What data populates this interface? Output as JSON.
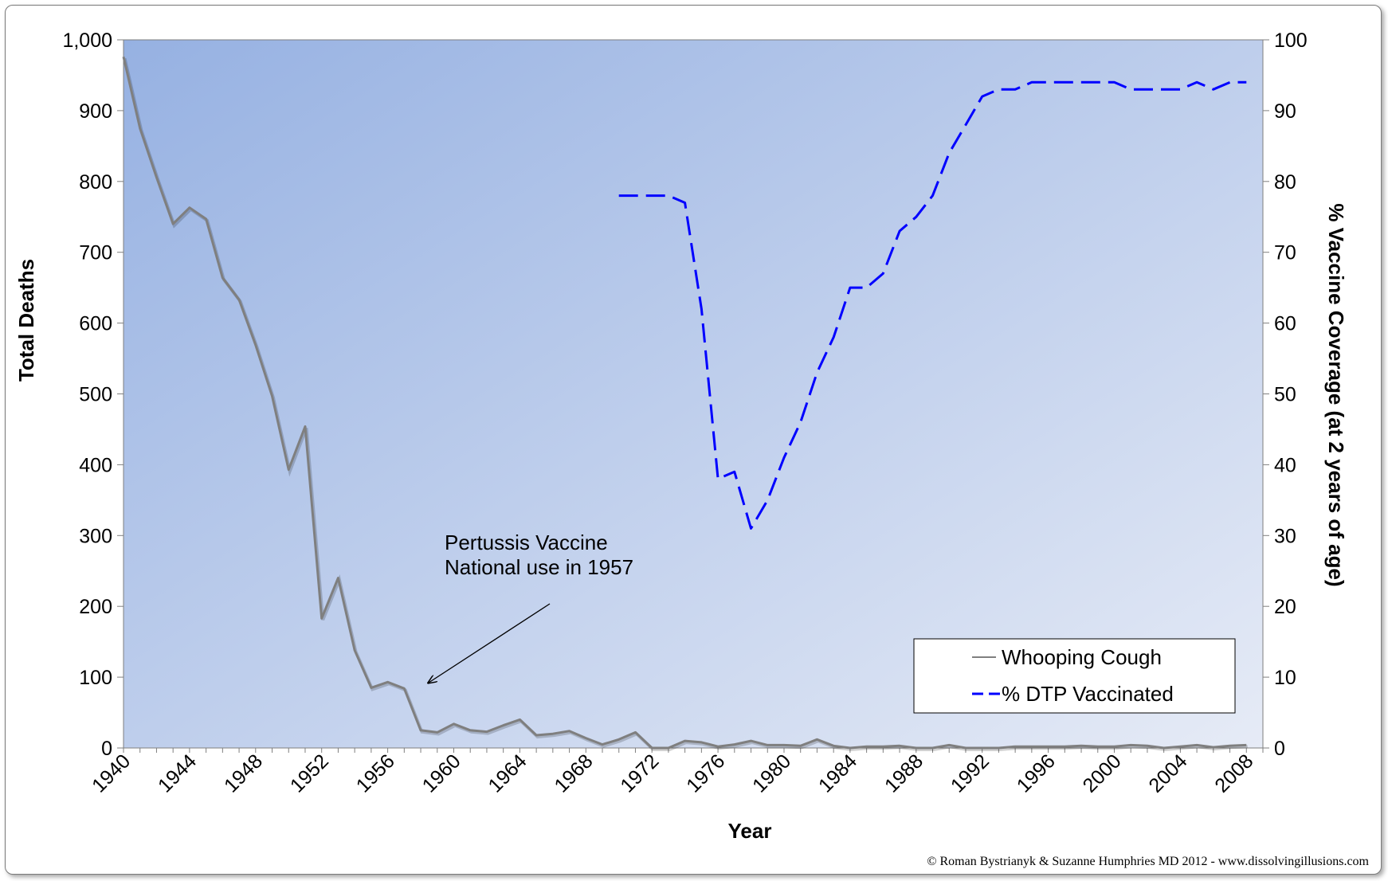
{
  "chart_data": {
    "type": "line",
    "xlabel": "Year",
    "ylabel_left": "Total Deaths",
    "ylabel_right": "% Vaccine Coverage (at 2 years of age)",
    "xlim": [
      1940,
      2009
    ],
    "ylim_left": [
      0,
      1000
    ],
    "ylim_right": [
      0,
      100
    ],
    "x_ticks": [
      1940,
      1944,
      1948,
      1952,
      1956,
      1960,
      1964,
      1968,
      1972,
      1976,
      1980,
      1984,
      1988,
      1992,
      1996,
      2000,
      2004,
      2008
    ],
    "y_ticks_left": [
      "0",
      "100",
      "200",
      "300",
      "400",
      "500",
      "600",
      "700",
      "800",
      "900",
      "1,000"
    ],
    "y_ticks_right": [
      "0",
      "10",
      "20",
      "30",
      "40",
      "50",
      "60",
      "70",
      "80",
      "90",
      "100"
    ],
    "grid": false,
    "legend_position": "bottom-right",
    "series": [
      {
        "name": "Whooping Cough",
        "axis": "left",
        "style": "solid",
        "color": "#7f7f7f",
        "x": [
          1940,
          1941,
          1942,
          1943,
          1944,
          1945,
          1946,
          1947,
          1948,
          1949,
          1950,
          1951,
          1952,
          1953,
          1954,
          1955,
          1956,
          1957,
          1958,
          1959,
          1960,
          1961,
          1962,
          1963,
          1964,
          1965,
          1966,
          1967,
          1968,
          1969,
          1970,
          1971,
          1972,
          1973,
          1974,
          1975,
          1976,
          1977,
          1978,
          1979,
          1980,
          1981,
          1982,
          1983,
          1984,
          1985,
          1986,
          1987,
          1988,
          1989,
          1990,
          1991,
          1992,
          1993,
          1994,
          1995,
          1996,
          1997,
          1998,
          1999,
          2000,
          2001,
          2002,
          2003,
          2004,
          2005,
          2006,
          2007,
          2008
        ],
        "values": [
          976,
          875,
          806,
          740,
          763,
          747,
          664,
          633,
          569,
          497,
          393,
          454,
          183,
          240,
          138,
          85,
          93,
          84,
          25,
          22,
          34,
          25,
          23,
          32,
          40,
          18,
          20,
          24,
          14,
          5,
          12,
          22,
          0,
          0,
          10,
          8,
          2,
          5,
          10,
          4,
          4,
          3,
          12,
          3,
          0,
          2,
          2,
          3,
          0,
          0,
          4,
          0,
          0,
          0,
          2,
          2,
          2,
          2,
          3,
          2,
          2,
          4,
          3,
          0,
          2,
          4,
          1,
          3,
          4
        ]
      },
      {
        "name": "% DTP Vaccinated",
        "axis": "right",
        "style": "dashed",
        "color": "#0000ff",
        "x": [
          1970,
          1971,
          1972,
          1973,
          1974,
          1975,
          1976,
          1977,
          1978,
          1979,
          1980,
          1981,
          1982,
          1983,
          1984,
          1985,
          1986,
          1987,
          1988,
          1989,
          1990,
          1991,
          1992,
          1993,
          1994,
          1995,
          1996,
          1997,
          1998,
          1999,
          2000,
          2001,
          2002,
          2003,
          2004,
          2005,
          2006,
          2007,
          2008
        ],
        "values": [
          78,
          78,
          78,
          78,
          77,
          62,
          38,
          39,
          31,
          35,
          41,
          46,
          53,
          58,
          65,
          65,
          67,
          73,
          75,
          78,
          84,
          88,
          92,
          93,
          93,
          94,
          94,
          94,
          94,
          94,
          94,
          93,
          93,
          93,
          93,
          94,
          93,
          94,
          94
        ]
      }
    ],
    "annotation": {
      "lines": [
        "Pertussis  Vaccine",
        "National use  in 1957"
      ],
      "arrow_to_x": 1957.5,
      "arrow_to_y": 90
    }
  },
  "credit": "© Roman Bystrianyk & Suzanne Humphries MD 2012 - www.dissolvingillusions.com",
  "colors": {
    "plot_bg_start": "#96b1e2",
    "plot_bg_end": "#e6ebf6",
    "whooping_line": "#7f7f7f",
    "dtp_line": "#0000ff"
  }
}
